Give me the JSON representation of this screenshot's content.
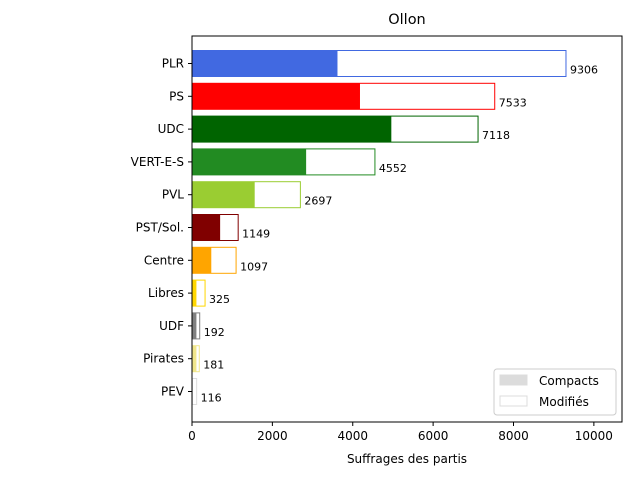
{
  "chart_data": {
    "type": "bar",
    "orientation": "horizontal",
    "title": "Ollon",
    "xlabel": "Suffrages des partis",
    "ylabel": "",
    "xlim": [
      0,
      10700
    ],
    "xticks": [
      0,
      2000,
      4000,
      6000,
      8000,
      10000
    ],
    "grid": false,
    "legend_position": "lower-right",
    "legend": [
      {
        "label": "Compacts",
        "style": "filled",
        "color": "#dcdcdc"
      },
      {
        "label": "Modifiés",
        "style": "outline",
        "color": "#dcdcdc"
      }
    ],
    "categories": [
      "PLR",
      "PS",
      "UDC",
      "VERT-E-S",
      "PVL",
      "PST/Sol.",
      "Centre",
      "Libres",
      "UDF",
      "Pirates",
      "PEV"
    ],
    "totals": [
      9306,
      7533,
      7118,
      4552,
      2697,
      1149,
      1097,
      325,
      192,
      181,
      116
    ],
    "compacts": [
      3620,
      4180,
      4960,
      2840,
      1560,
      700,
      480,
      110,
      110,
      110,
      20
    ],
    "colors": [
      "#4169e1",
      "#ff0000",
      "#006400",
      "#228b22",
      "#9acd32",
      "#800000",
      "#ffa500",
      "#ffd700",
      "#808080",
      "#f0e68c",
      "#dcdcdc"
    ]
  }
}
